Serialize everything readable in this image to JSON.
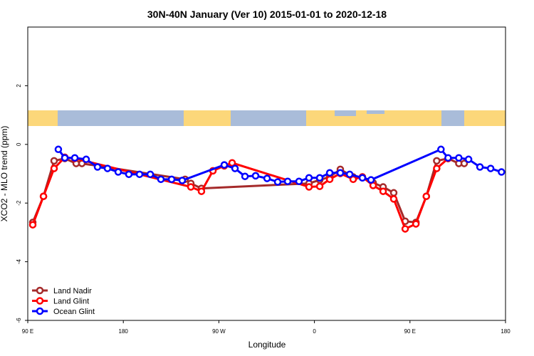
{
  "chart_data": {
    "type": "line",
    "title": "30N-40N January (Ver 10)   2015-01-01 to 2020-12-18",
    "xlabel": "Longitude",
    "ylabel": "XCO2 - MLO trend (ppm)",
    "xlim": [
      90,
      540
    ],
    "ylim": [
      -6,
      4
    ],
    "xticks": [
      {
        "value": 90,
        "label": "90 E"
      },
      180,
      {
        "value": 270,
        "label": "90 W"
      },
      {
        "value": 360,
        "label": "0"
      },
      {
        "value": 450,
        "label": "90 E"
      },
      180.0001
    ],
    "yticks": [
      -6,
      -4,
      -2,
      0,
      2
    ],
    "legend": "bottom-left",
    "series": [
      {
        "name": "Land Nadir",
        "color": "#a52a2a",
        "x": [
          94.7,
          104.8,
          114.8,
          124.9,
          135.6,
          141,
          238.2,
          243.6,
          253.6,
          354.9,
          365,
          374.4,
          384.4,
          396.5,
          405.2,
          415.3,
          424.7,
          434.7,
          445.5,
          455.6,
          465.4,
          475.2,
          485.9,
          496,
          501.1
        ],
        "values": [
          -2.66,
          -1.77,
          -0.56,
          -0.48,
          -0.65,
          -0.65,
          -1.19,
          -1.33,
          -1.5,
          -1.33,
          -1.21,
          -1.11,
          -0.85,
          -1.11,
          -1.11,
          -1.31,
          -1.45,
          -1.65,
          -2.62,
          -2.66,
          -1.77,
          -0.56,
          -0.48,
          -0.65,
          -0.65
        ]
      },
      {
        "name": "Land Glint",
        "color": "#ff0000",
        "x": [
          94.7,
          104.8,
          114.8,
          124.9,
          134.3,
          243.6,
          253.6,
          264.4,
          275.1,
          282.5,
          354.9,
          365,
          374.4,
          384.4,
          396.5,
          405.2,
          415.3,
          424.7,
          434.7,
          445.5,
          455.6,
          465.4,
          475.2,
          485.9
        ],
        "values": [
          -2.74,
          -1.77,
          -0.82,
          -0.44,
          -0.48,
          -1.45,
          -1.6,
          -0.9,
          -0.73,
          -0.63,
          -1.45,
          -1.43,
          -1.19,
          -0.99,
          -1.19,
          -1.11,
          -1.4,
          -1.6,
          -1.86,
          -2.88,
          -2.71,
          -1.77,
          -0.82,
          -0.48
        ]
      },
      {
        "name": "Ocean Glint",
        "color": "#0000ff",
        "x": [
          118.8,
          124.9,
          134.3,
          145,
          155.7,
          165.1,
          175.2,
          185.2,
          195.3,
          205.4,
          215.4,
          225.5,
          235.5,
          275.1,
          285.2,
          294.6,
          304.6,
          315.4,
          325.4,
          334.8,
          345.5,
          354.9,
          365,
          374.4,
          384.4,
          393.2,
          405.2,
          413.3,
          479.2,
          485.9,
          496,
          505.2,
          515.9,
          526,
          536.2
        ],
        "values": [
          -0.17,
          -0.46,
          -0.46,
          -0.51,
          -0.77,
          -0.82,
          -0.94,
          -1.02,
          -1.02,
          -1.02,
          -1.19,
          -1.19,
          -1.23,
          -0.7,
          -0.82,
          -1.09,
          -1.07,
          -1.16,
          -1.28,
          -1.26,
          -1.26,
          -1.14,
          -1.14,
          -0.97,
          -0.97,
          -1.02,
          -1.14,
          -1.21,
          -0.17,
          -0.46,
          -0.46,
          -0.51,
          -0.77,
          -0.82,
          -0.94
        ]
      }
    ]
  }
}
